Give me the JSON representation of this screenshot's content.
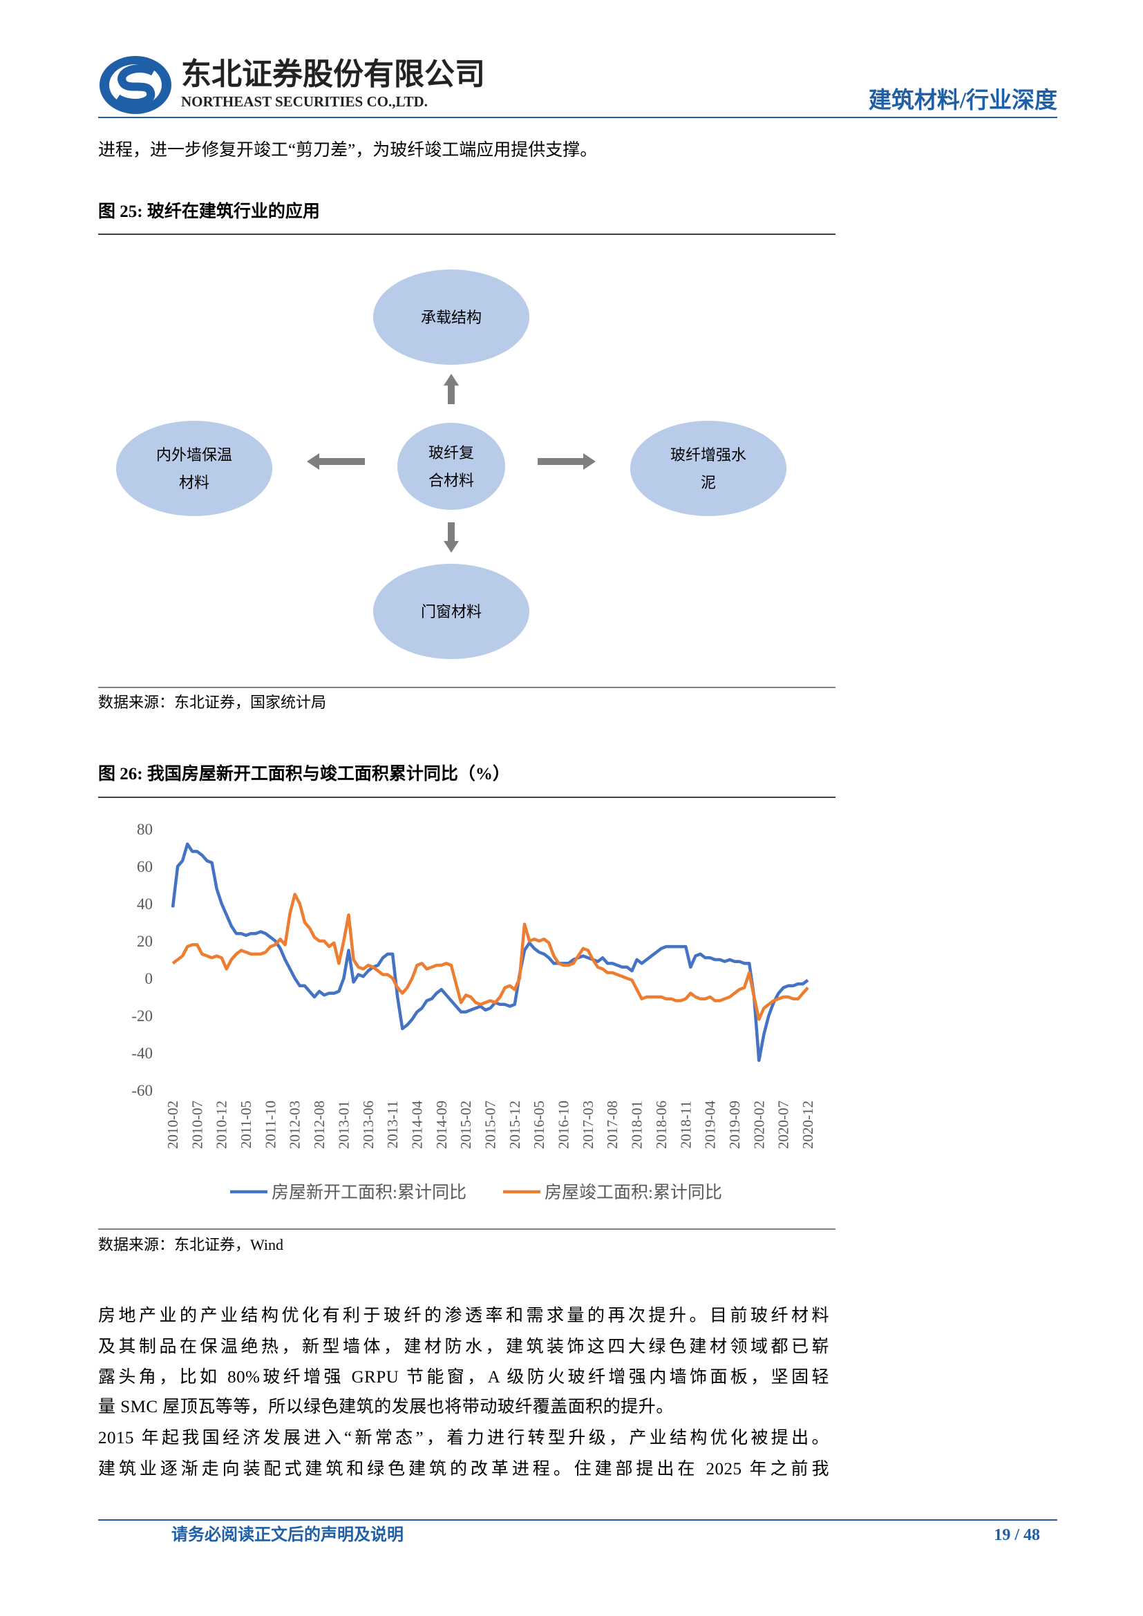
{
  "header": {
    "company": "东北证券股份有限公司",
    "company_en": "NORTHEAST SECURITIES CO.,LTD.",
    "category": "建筑材料/行业深度"
  },
  "intro": "进程，进一步修复开竣工“剪刀差”，为玻纤竣工端应用提供支撑。",
  "figure25": {
    "title": "图 25: 玻纤在建筑行业的应用",
    "nodes": [
      {
        "lines": [
          "承载结构"
        ]
      },
      {
        "lines": [
          "内外墙保温",
          "材料"
        ]
      },
      {
        "lines": [
          "玻纤复",
          "合材料"
        ]
      },
      {
        "lines": [
          "玻纤增强水",
          "泥"
        ]
      },
      {
        "lines": [
          "门窗材料"
        ]
      }
    ],
    "source": "数据来源：东北证券，国家统计局"
  },
  "figure26": {
    "title": "图 26: 我国房屋新开工面积与竣工面积累计同比（%）",
    "source": "数据来源：东北证券，Wind"
  },
  "chart_data": {
    "type": "line",
    "categories": [
      "2010-02",
      null,
      null,
      null,
      null,
      "2010-07",
      null,
      null,
      null,
      null,
      "2010-12",
      null,
      null,
      null,
      null,
      "2011-05",
      null,
      null,
      null,
      null,
      "2011-10",
      null,
      null,
      null,
      null,
      "2012-03",
      null,
      null,
      null,
      null,
      "2012-08",
      null,
      null,
      null,
      null,
      "2013-01",
      null,
      null,
      null,
      null,
      "2013-06",
      null,
      null,
      null,
      null,
      "2013-11",
      null,
      null,
      null,
      null,
      "2014-04",
      null,
      null,
      null,
      null,
      "2014-09",
      null,
      null,
      null,
      null,
      "2015-02",
      null,
      null,
      null,
      null,
      "2015-07",
      null,
      null,
      null,
      null,
      "2015-12",
      null,
      null,
      null,
      null,
      "2016-05",
      null,
      null,
      null,
      null,
      "2016-10",
      null,
      null,
      null,
      null,
      "2017-03",
      null,
      null,
      null,
      null,
      "2017-08",
      null,
      null,
      null,
      null,
      "2018-01",
      null,
      null,
      null,
      null,
      "2018-06",
      null,
      null,
      null,
      null,
      "2018-11",
      null,
      null,
      null,
      null,
      "2019-04",
      null,
      null,
      null,
      null,
      "2019-09",
      null,
      null,
      null,
      null,
      "2020-02",
      null,
      null,
      null,
      null,
      "2020-07",
      null,
      null,
      null,
      null,
      "2020-12"
    ],
    "series": [
      {
        "name": "房屋新开工面积:累计同比",
        "color": "#4472c4",
        "values": [
          38,
          60,
          63,
          72,
          68,
          68,
          66,
          63,
          62,
          48,
          40,
          34,
          28,
          24,
          24,
          23,
          24,
          24,
          25,
          24,
          22,
          20,
          16,
          10,
          5,
          0,
          -4,
          -4,
          -7,
          -10,
          -7,
          -9,
          -8,
          -8,
          -7,
          0,
          15,
          -2,
          2,
          1,
          4,
          6,
          7,
          11,
          13,
          13,
          -10,
          -27,
          -25,
          -22,
          -18,
          -16,
          -12,
          -11,
          -8,
          -6,
          -9,
          -12,
          -15,
          -18,
          -18,
          -17,
          -16,
          -15,
          -17,
          -16,
          -13,
          -14,
          -14,
          -15,
          -14,
          2,
          15,
          19,
          16,
          14,
          13,
          11,
          8,
          8,
          8,
          8,
          10,
          11,
          12,
          11,
          10,
          9,
          11,
          8,
          8,
          7,
          6,
          6,
          4,
          10,
          8,
          10,
          12,
          14,
          16,
          17,
          17,
          17,
          17,
          17,
          6,
          12,
          13,
          11,
          11,
          10,
          10,
          9,
          10,
          9,
          9,
          8,
          8,
          -10,
          -44,
          -30,
          -20,
          -13,
          -8,
          -5,
          -4,
          -4,
          -3,
          -3,
          -1
        ]
      },
      {
        "name": "房屋竣工面积:累计同比",
        "color": "#ed7d31",
        "values": [
          8,
          10,
          12,
          17,
          18,
          18,
          13,
          12,
          11,
          12,
          11,
          5,
          10,
          13,
          15,
          14,
          13,
          13,
          13,
          14,
          17,
          18,
          21,
          18,
          35,
          45,
          40,
          30,
          27,
          22,
          20,
          20,
          17,
          19,
          8,
          20,
          34,
          10,
          6,
          5,
          7,
          6,
          4,
          2,
          2,
          0,
          -5,
          -8,
          -5,
          0,
          7,
          8,
          5,
          6,
          7,
          7,
          8,
          7,
          -3,
          -13,
          -9,
          -10,
          -13,
          -14,
          -13,
          -12,
          -13,
          -10,
          -5,
          -4,
          -6,
          0,
          29,
          20,
          21,
          20,
          21,
          19,
          12,
          8,
          7,
          7,
          8,
          12,
          16,
          15,
          10,
          6,
          5,
          3,
          3,
          2,
          1,
          0,
          -1,
          -6,
          -11,
          -10,
          -10,
          -10,
          -10,
          -11,
          -11,
          -12,
          -12,
          -11,
          -8,
          -10,
          -11,
          -11,
          -10,
          -12,
          -12,
          -11,
          -10,
          -8,
          -6,
          -5,
          3,
          -10,
          -22,
          -16,
          -14,
          -12,
          -11,
          -10,
          -10,
          -11,
          -11,
          -8,
          -5
        ]
      }
    ],
    "ylim": [
      -60,
      80
    ],
    "yticks": [
      -60,
      -40,
      -20,
      0,
      20,
      40,
      60,
      80
    ],
    "grid": false,
    "legend": "bottom"
  },
  "body": {
    "paragraphs": [
      [
        "房地产业的产业结构优化有利于玻纤的渗透率和需求量的再次提升。目前玻纤材料",
        "及其制品在保温绝热，新型墙体，建材防水，建筑装饰这四大绿色建材领域都已崭",
        "露头角，比如 80%玻纤增强 GRPU 节能窗，A 级防火玻纤增强内墙饰面板，坚固轻",
        "量 SMC 屋顶瓦等等，所以绿色建筑的发展也将带动玻纤覆盖面积的提升。"
      ],
      [
        "2015 年起我国经济发展进入“新常态”，着力进行转型升级，产业结构优化被提出。",
        "建筑业逐渐走向装配式建筑和绿色建筑的改革进程。住建部提出在 2025 年之前我"
      ]
    ]
  },
  "footer": {
    "notice": "请务必阅读正文后的声明及说明",
    "page": "19 / 48"
  }
}
